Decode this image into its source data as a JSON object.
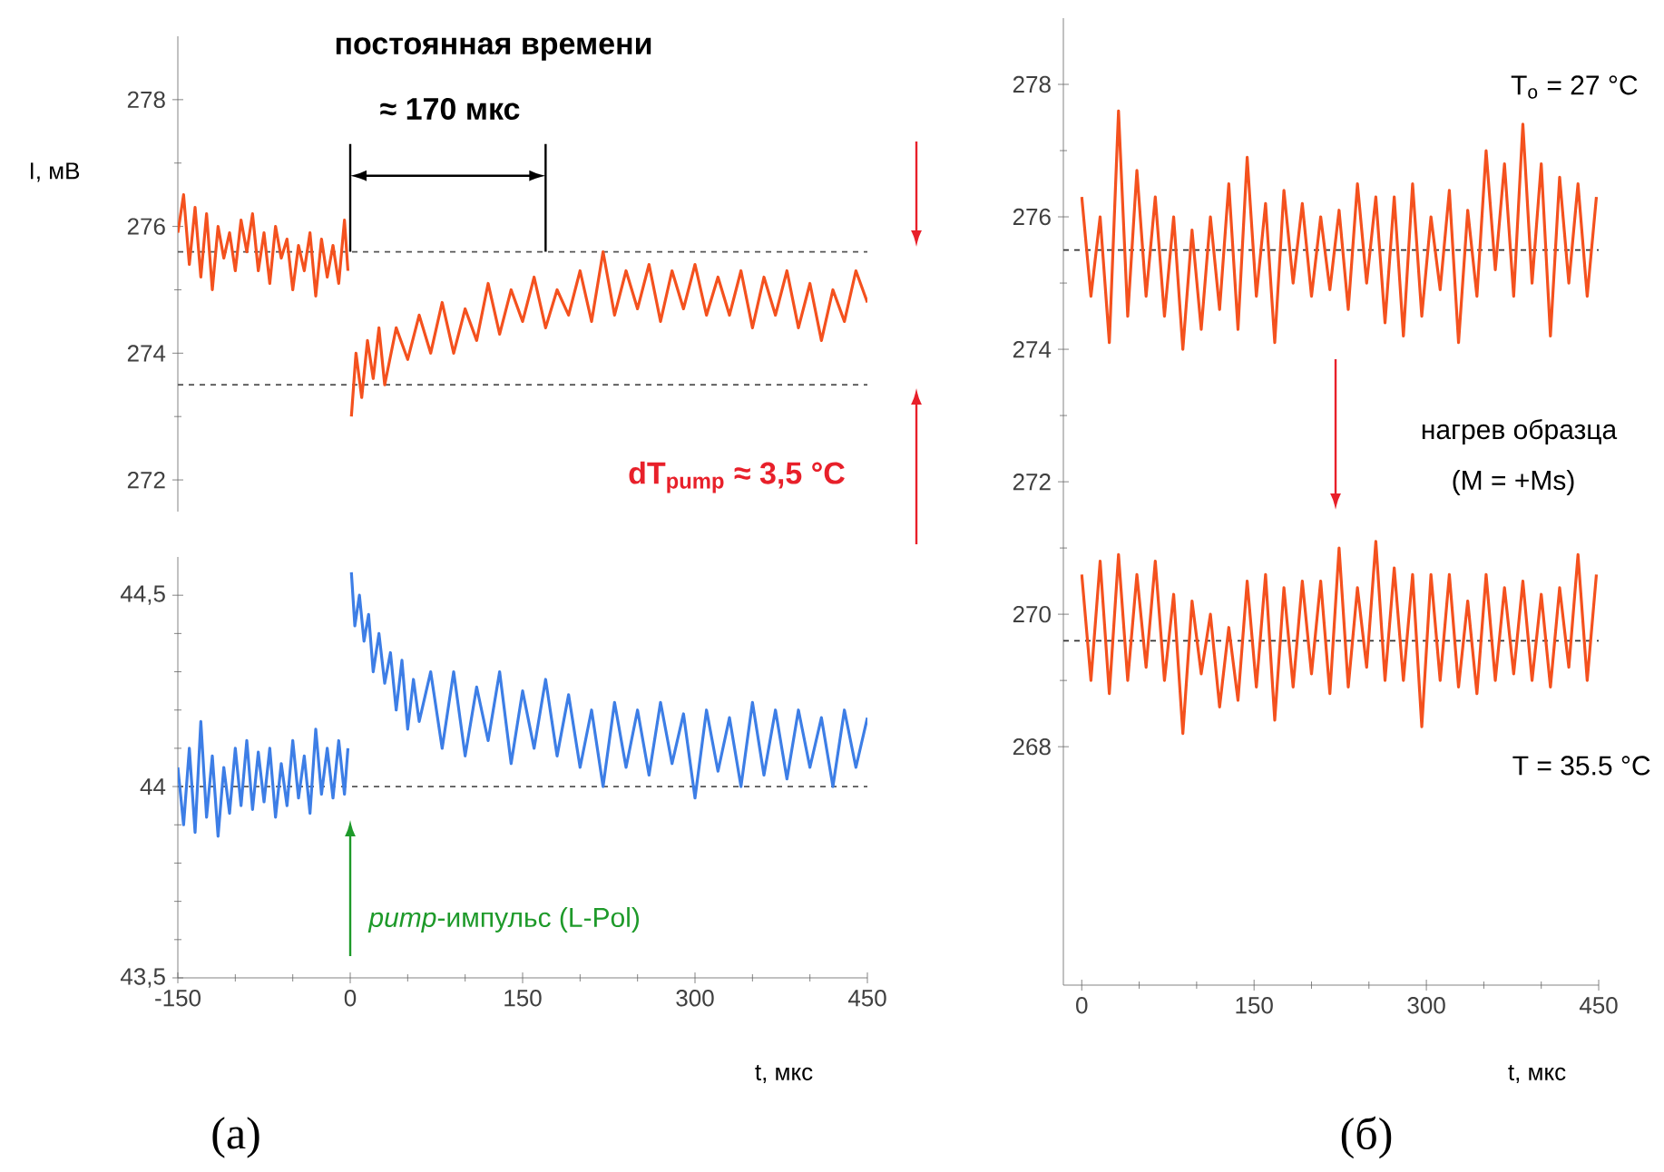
{
  "chart_data": [
    {
      "type": "line",
      "ylabel": "I, мВ",
      "xlim": [
        -150,
        450
      ],
      "ylim": [
        271.5,
        279
      ],
      "yticks": [
        272,
        274,
        276,
        278
      ],
      "tick_labels": "y",
      "series": [
        {
          "color": "#f4511e",
          "x": [
            -150,
            -145,
            -140,
            -135,
            -130,
            -125,
            -120,
            -115,
            -110,
            -105,
            -100,
            -95,
            -90,
            -85,
            -80,
            -75,
            -70,
            -65,
            -60,
            -55,
            -50,
            -45,
            -40,
            -35,
            -30,
            -25,
            -20,
            -15,
            -10,
            -5,
            -2,
            0,
            1,
            5,
            10,
            15,
            20,
            25,
            30,
            40,
            50,
            60,
            70,
            80,
            90,
            100,
            110,
            120,
            130,
            140,
            150,
            160,
            170,
            180,
            190,
            200,
            210,
            220,
            230,
            240,
            250,
            260,
            270,
            280,
            290,
            300,
            310,
            320,
            330,
            340,
            350,
            360,
            370,
            380,
            390,
            400,
            410,
            420,
            430,
            440,
            450
          ],
          "values": [
            275.9,
            276.5,
            275.4,
            276.3,
            275.2,
            276.2,
            275.0,
            276.0,
            275.5,
            275.9,
            275.3,
            276.1,
            275.6,
            276.2,
            275.3,
            275.9,
            275.1,
            276.0,
            275.5,
            275.8,
            275.0,
            275.7,
            275.3,
            275.9,
            274.9,
            275.8,
            275.2,
            275.7,
            275.1,
            276.1,
            275.3,
            null,
            273.0,
            274.0,
            273.3,
            274.2,
            273.6,
            274.4,
            273.5,
            274.4,
            273.9,
            274.6,
            274.0,
            274.8,
            274.0,
            274.7,
            274.2,
            275.1,
            274.3,
            275.0,
            274.5,
            275.2,
            274.4,
            275.0,
            274.6,
            275.3,
            274.5,
            275.6,
            274.6,
            275.3,
            274.7,
            275.4,
            274.5,
            275.3,
            274.7,
            275.4,
            274.6,
            275.2,
            274.6,
            275.3,
            274.4,
            275.2,
            274.6,
            275.3,
            274.4,
            275.1,
            274.2,
            275.0,
            274.5,
            275.3,
            274.8
          ]
        }
      ],
      "ref_lines": [
        {
          "axis": "y",
          "value": 275.6,
          "color": "#555555",
          "line_style": "dashed"
        },
        {
          "axis": "y",
          "value": 273.5,
          "color": "#555555",
          "line_style": "dashed"
        }
      ],
      "annotations": [
        "постоянная времени",
        {
          "text": "≈ 170 мкс",
          "x": 170,
          "y": 275.6
        },
        "dT$_{pump}$ ≈ 3,5 °C"
      ]
    },
    {
      "type": "line",
      "xlabel": "t, мкс",
      "xlim": [
        -150,
        450
      ],
      "ylim": [
        43.5,
        44.6
      ],
      "xticks": [
        -150,
        0,
        150,
        300,
        450
      ],
      "yticks": [
        {
          "value": 43.5,
          "label": "43,5"
        },
        44,
        {
          "value": 44.5,
          "label": "44,5"
        }
      ],
      "series": [
        {
          "color": "#3d7ee6",
          "x": [
            -150,
            -145,
            -140,
            -135,
            -130,
            -125,
            -120,
            -115,
            -110,
            -105,
            -100,
            -95,
            -90,
            -85,
            -80,
            -75,
            -70,
            -65,
            -60,
            -55,
            -50,
            -45,
            -40,
            -35,
            -30,
            -25,
            -20,
            -15,
            -10,
            -5,
            -2,
            0,
            1,
            4,
            8,
            12,
            16,
            20,
            25,
            30,
            35,
            40,
            45,
            50,
            55,
            60,
            70,
            80,
            90,
            100,
            110,
            120,
            130,
            140,
            150,
            160,
            170,
            180,
            190,
            200,
            210,
            220,
            230,
            240,
            250,
            260,
            270,
            280,
            290,
            300,
            310,
            320,
            330,
            340,
            350,
            360,
            370,
            380,
            390,
            400,
            410,
            420,
            430,
            440,
            450
          ],
          "values": [
            44.05,
            43.9,
            44.1,
            43.88,
            44.17,
            43.92,
            44.08,
            43.87,
            44.05,
            43.93,
            44.1,
            43.95,
            44.12,
            43.94,
            44.09,
            43.96,
            44.1,
            43.92,
            44.06,
            43.95,
            44.12,
            43.97,
            44.08,
            43.93,
            44.15,
            43.98,
            44.1,
            43.97,
            44.12,
            43.98,
            44.1,
            null,
            44.56,
            44.42,
            44.5,
            44.38,
            44.45,
            44.3,
            44.4,
            44.27,
            44.35,
            44.2,
            44.33,
            44.15,
            44.28,
            44.17,
            44.3,
            44.1,
            44.3,
            44.08,
            44.26,
            44.12,
            44.3,
            44.06,
            44.25,
            44.1,
            44.28,
            44.08,
            44.24,
            44.05,
            44.2,
            44.0,
            44.22,
            44.05,
            44.2,
            44.03,
            44.22,
            44.06,
            44.19,
            43.97,
            44.2,
            44.04,
            44.18,
            44.0,
            44.22,
            44.03,
            44.2,
            44.02,
            44.2,
            44.05,
            44.18,
            44.0,
            44.2,
            44.05,
            44.18
          ]
        }
      ],
      "ref_lines": [
        {
          "axis": "y",
          "value": 44,
          "color": "#555555",
          "line_style": "dashed"
        }
      ],
      "annotations": [
        "*pump*-импульс (L-Pol)",
        "(а)"
      ]
    },
    {
      "type": "line",
      "xlabel": "t, мкс",
      "xlim": [
        -16,
        450
      ],
      "ylim": [
        264.4,
        279
      ],
      "xticks": [
        0,
        150,
        300,
        450
      ],
      "yticks": [
        268,
        270,
        272,
        274,
        276,
        278
      ],
      "series": [
        {
          "color": "#f4511e",
          "x": [
            0,
            8,
            16,
            24,
            32,
            40,
            48,
            56,
            64,
            72,
            80,
            88,
            96,
            104,
            112,
            120,
            128,
            136,
            144,
            152,
            160,
            168,
            176,
            184,
            192,
            200,
            208,
            216,
            224,
            232,
            240,
            248,
            256,
            264,
            272,
            280,
            288,
            296,
            304,
            312,
            320,
            328,
            336,
            344,
            352,
            360,
            368,
            376,
            384,
            392,
            400,
            408,
            416,
            424,
            432,
            440,
            448
          ],
          "values": [
            276.3,
            274.8,
            276.0,
            274.1,
            277.6,
            274.5,
            276.7,
            274.8,
            276.3,
            274.5,
            276.0,
            274.0,
            275.8,
            274.3,
            276.0,
            274.6,
            276.5,
            274.3,
            276.9,
            274.8,
            276.2,
            274.1,
            276.4,
            275.0,
            276.2,
            274.8,
            276.0,
            274.9,
            276.1,
            274.6,
            276.5,
            275.0,
            276.3,
            274.4,
            276.3,
            274.2,
            276.5,
            274.5,
            276.0,
            274.9,
            276.4,
            274.1,
            276.1,
            274.8,
            277.0,
            275.2,
            276.8,
            274.8,
            277.4,
            275.0,
            276.8,
            274.2,
            276.6,
            275.0,
            276.5,
            274.8,
            276.3
          ]
        },
        {
          "color": "#f4511e",
          "x": [
            0,
            8,
            16,
            24,
            32,
            40,
            48,
            56,
            64,
            72,
            80,
            88,
            96,
            104,
            112,
            120,
            128,
            136,
            144,
            152,
            160,
            168,
            176,
            184,
            192,
            200,
            208,
            216,
            224,
            232,
            240,
            248,
            256,
            264,
            272,
            280,
            288,
            296,
            304,
            312,
            320,
            328,
            336,
            344,
            352,
            360,
            368,
            376,
            384,
            392,
            400,
            408,
            416,
            424,
            432,
            440,
            448
          ],
          "values": [
            270.6,
            269.0,
            270.8,
            268.8,
            270.9,
            269.0,
            270.6,
            269.2,
            270.8,
            269.0,
            270.3,
            268.2,
            270.2,
            269.1,
            270.0,
            268.6,
            269.8,
            268.7,
            270.5,
            268.9,
            270.6,
            268.4,
            270.4,
            268.9,
            270.5,
            269.1,
            270.5,
            268.8,
            271.0,
            268.9,
            270.4,
            269.2,
            271.1,
            269.0,
            270.7,
            269.0,
            270.6,
            268.3,
            270.6,
            269.0,
            270.6,
            268.9,
            270.2,
            268.8,
            270.6,
            269.0,
            270.4,
            269.1,
            270.5,
            269.0,
            270.3,
            268.9,
            270.4,
            269.2,
            270.9,
            269.0,
            270.6
          ]
        }
      ],
      "ref_lines": [
        {
          "axis": "y",
          "value": 275.5,
          "color": "#333333",
          "line_style": "dashed"
        },
        {
          "axis": "y",
          "value": 269.6,
          "color": "#333333",
          "line_style": "dashed"
        }
      ],
      "annotations": [
        "T$_{o}$ = 27 °C",
        "нагрев образца",
        "(M = +Ms)",
        "T = 35.5 °C",
        "(б)"
      ]
    }
  ]
}
